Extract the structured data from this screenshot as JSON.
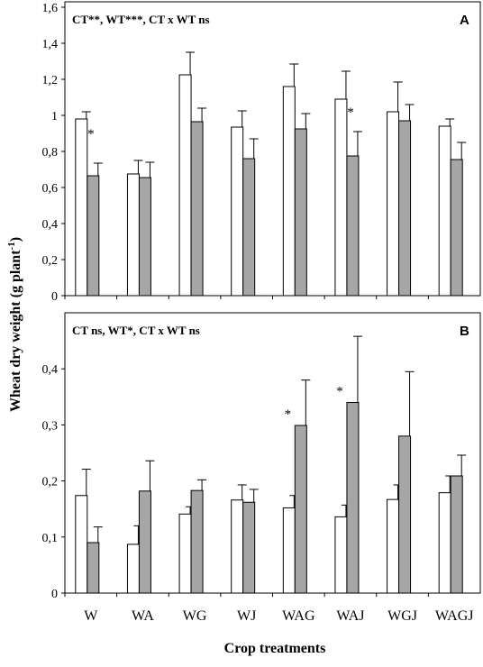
{
  "ylabel": "Wheat dry weight (g plant",
  "ylabel_sup": "-1",
  "ylabel_close": ")",
  "xlabel": "Crop treatments",
  "categories": [
    "W",
    "WA",
    "WG",
    "WJ",
    "WAG",
    "WAJ",
    "WGJ",
    "WAGJ"
  ],
  "chart_data": [
    {
      "type": "bar",
      "panel": "A",
      "stats": "CT**, WT***, CT x WT ns",
      "ylim": [
        0,
        1.6
      ],
      "yticks": [
        "0",
        "0,2",
        "0,4",
        "0,6",
        "0,8",
        "1",
        "1,2",
        "1,4",
        "1,6"
      ],
      "categories": [
        "W",
        "WA",
        "WG",
        "WJ",
        "WAG",
        "WAJ",
        "WGJ",
        "WAGJ"
      ],
      "series": [
        {
          "color": "#ffffff",
          "values": [
            0.98,
            0.675,
            1.225,
            0.935,
            1.16,
            1.09,
            1.02,
            0.94
          ],
          "errors": [
            0.04,
            0.075,
            0.125,
            0.09,
            0.125,
            0.155,
            0.165,
            0.04
          ]
        },
        {
          "color": "#a6a6a6",
          "values": [
            0.665,
            0.655,
            0.965,
            0.76,
            0.925,
            0.775,
            0.97,
            0.755
          ],
          "errors": [
            0.07,
            0.085,
            0.075,
            0.11,
            0.085,
            0.135,
            0.09,
            0.095
          ]
        }
      ],
      "annotations": [
        {
          "category": "W",
          "text": "*"
        },
        {
          "category": "WAJ",
          "text": "*"
        }
      ],
      "grid": false
    },
    {
      "type": "bar",
      "panel": "B",
      "stats": "CT ns, WT*, CT x WT ns",
      "ylim": [
        0,
        0.5
      ],
      "yticks": [
        "0",
        "0,1",
        "0,2",
        "0,3",
        "0,4"
      ],
      "categories": [
        "W",
        "WA",
        "WG",
        "WJ",
        "WAG",
        "WAJ",
        "WGJ",
        "WAGJ"
      ],
      "series": [
        {
          "color": "#ffffff",
          "values": [
            0.174,
            0.087,
            0.141,
            0.166,
            0.152,
            0.136,
            0.167,
            0.179
          ],
          "errors": [
            0.047,
            0.033,
            0.013,
            0.027,
            0.022,
            0.021,
            0.026,
            0.03
          ]
        },
        {
          "color": "#a6a6a6",
          "values": [
            0.09,
            0.182,
            0.183,
            0.162,
            0.299,
            0.34,
            0.28,
            0.209
          ],
          "errors": [
            0.028,
            0.054,
            0.019,
            0.023,
            0.081,
            0.118,
            0.115,
            0.037
          ]
        }
      ],
      "annotations": [
        {
          "category": "WAG",
          "text": "*"
        },
        {
          "category": "WAJ",
          "text": "*"
        }
      ],
      "grid": false
    }
  ]
}
